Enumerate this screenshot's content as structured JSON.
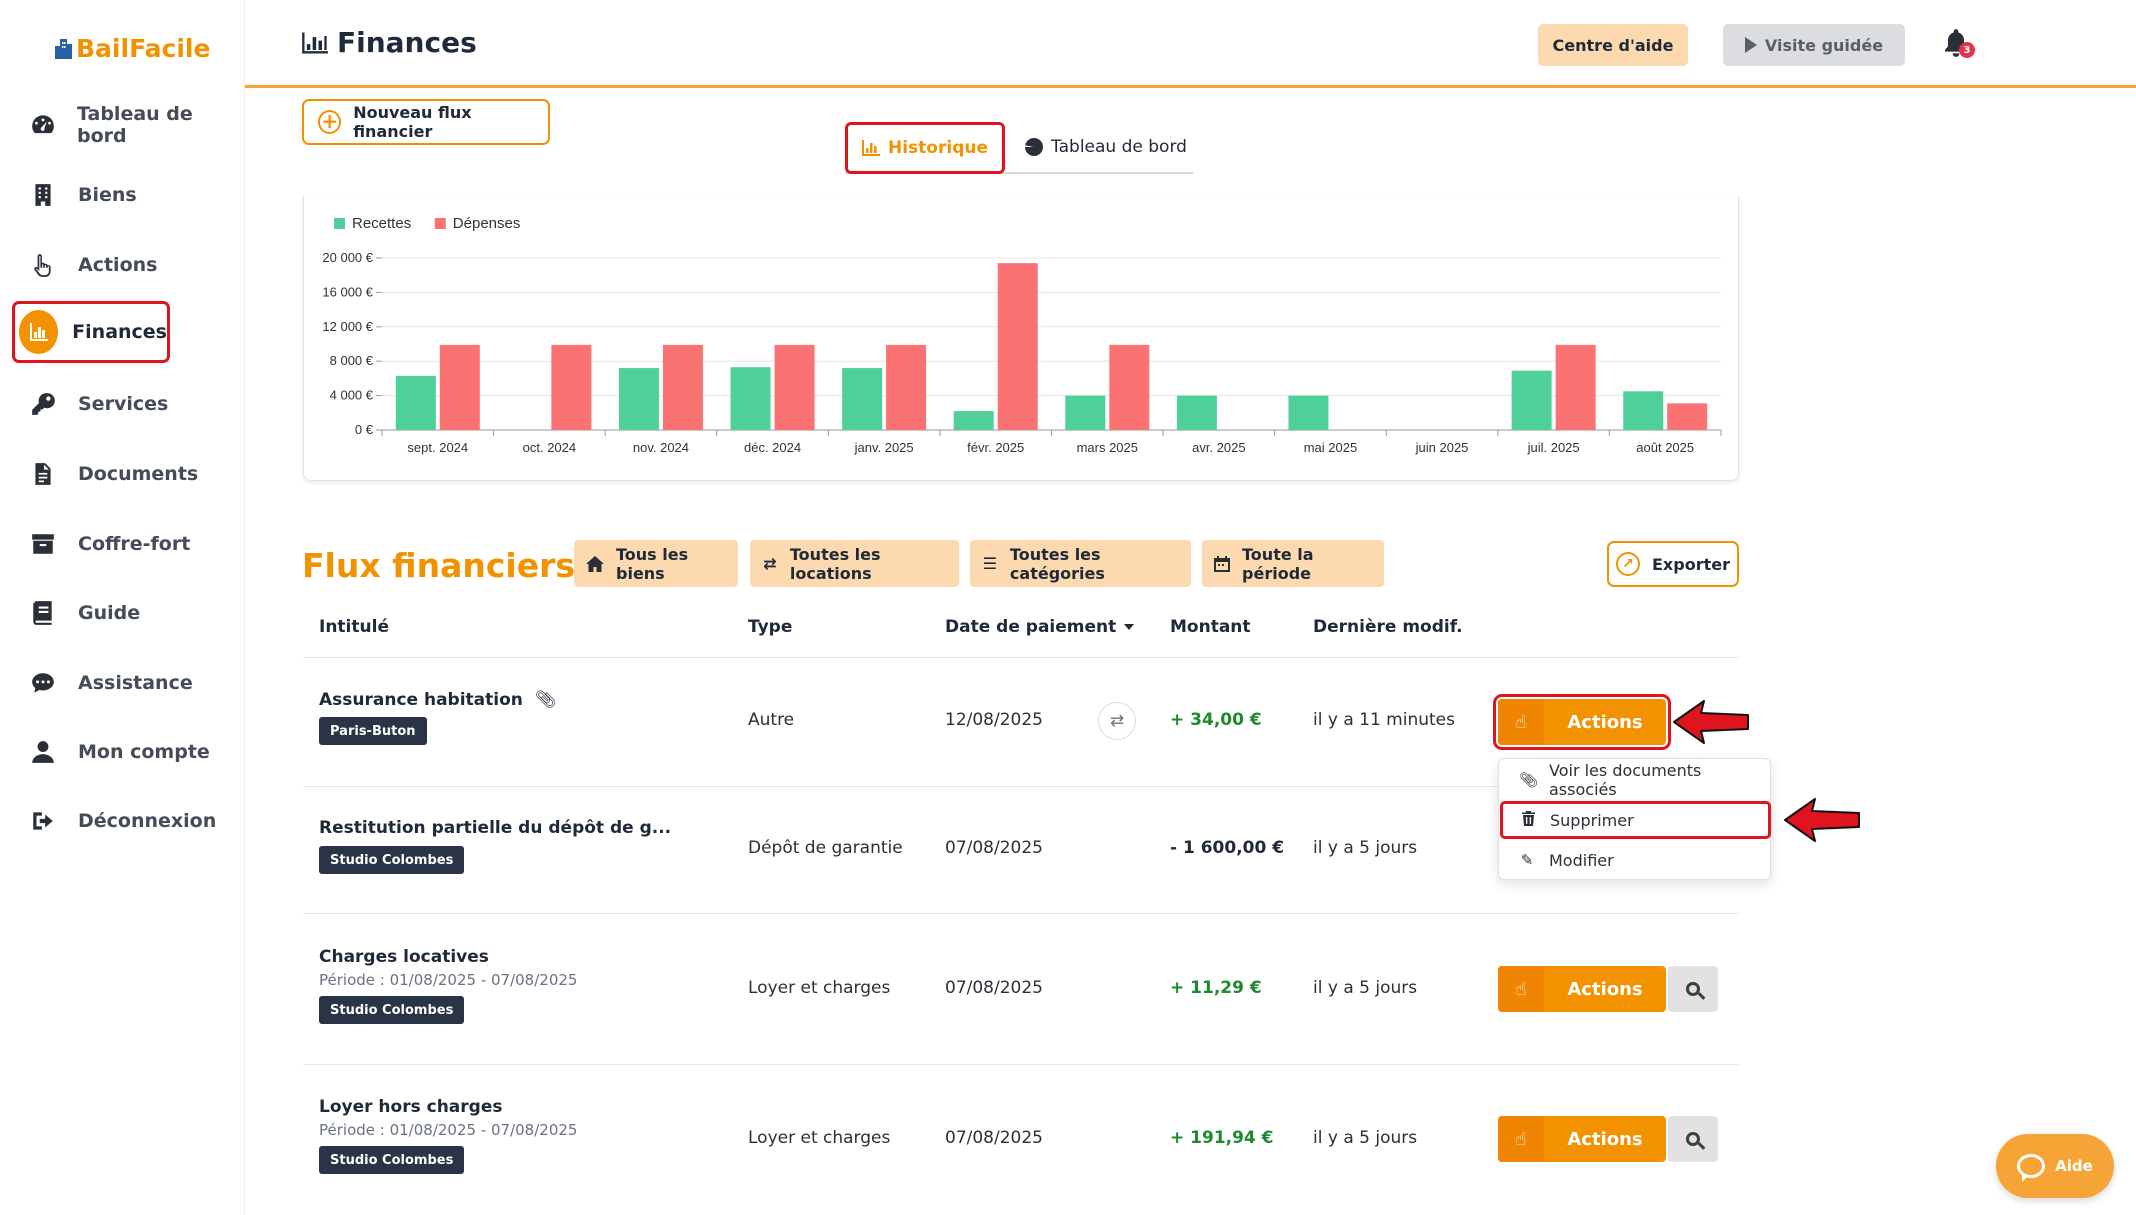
{
  "app": {
    "brand": "BailFacile"
  },
  "sidebar": {
    "items": [
      {
        "label": "Tableau de bord",
        "icon": "dashboard-gauge-icon"
      },
      {
        "label": "Biens",
        "icon": "building-icon"
      },
      {
        "label": "Actions",
        "icon": "hand-pointer-icon"
      },
      {
        "label": "Finances",
        "icon": "bar-chart-icon",
        "active": true
      },
      {
        "label": "Services",
        "icon": "key-icon"
      },
      {
        "label": "Documents",
        "icon": "document-icon"
      },
      {
        "label": "Coffre-fort",
        "icon": "archive-box-icon"
      },
      {
        "label": "Guide",
        "icon": "book-icon"
      },
      {
        "label": "Assistance",
        "icon": "chat-bubble-icon"
      },
      {
        "label": "Mon compte",
        "icon": "user-icon"
      },
      {
        "label": "Déconnexion",
        "icon": "logout-icon"
      }
    ]
  },
  "header": {
    "title": "Finances",
    "help_center": "Centre d'aide",
    "guided_tour": "Visite guidée",
    "notifications_count": "3"
  },
  "toolbar": {
    "new_flow": "Nouveau flux financier",
    "tabs": {
      "history": "Historique",
      "dashboard": "Tableau de bord"
    }
  },
  "chart_data": {
    "type": "bar",
    "categories": [
      "sept. 2024",
      "oct. 2024",
      "nov. 2024",
      "déc. 2024",
      "janv. 2025",
      "févr. 2025",
      "mars 2025",
      "avr. 2025",
      "mai 2025",
      "juin 2025",
      "juil. 2025",
      "août 2025"
    ],
    "series": [
      {
        "name": "Recettes",
        "color": "#4fd09a",
        "values": [
          6300,
          0,
          7200,
          7300,
          7200,
          2200,
          4000,
          4000,
          4000,
          0,
          6900,
          4500
        ]
      },
      {
        "name": "Dépenses",
        "color": "#fb7272",
        "values": [
          9900,
          9900,
          9900,
          9900,
          9900,
          19400,
          9900,
          0,
          0,
          0,
          9900,
          3100
        ]
      }
    ],
    "yticks": [
      "0 €",
      "4 000 €",
      "8 000 €",
      "12 000 €",
      "16 000 €",
      "20 000 €"
    ],
    "ylim": [
      0,
      20000
    ],
    "legend_position": "top-left",
    "grid": true
  },
  "flux": {
    "title": "Flux financiers",
    "filters": {
      "all_properties": "Tous les biens",
      "all_rentals": "Toutes les locations",
      "all_categories": "Toutes les catégories",
      "all_period": "Toute la période"
    },
    "export": "Exporter",
    "columns": {
      "label": "Intitulé",
      "type": "Type",
      "payment_date": "Date de paiement",
      "amount": "Montant",
      "last_modified": "Dernière modif."
    },
    "rows": [
      {
        "title": "Assurance habitation",
        "period": "",
        "tag": "Paris-Buton",
        "type": "Autre",
        "date": "12/08/2025",
        "amount": "+ 34,00 €",
        "modified": "il y a 11 minutes",
        "actions": "Actions"
      },
      {
        "title": "Restitution partielle du dépôt de g...",
        "period": "",
        "tag": "Studio Colombes",
        "type": "Dépôt de garantie",
        "date": "07/08/2025",
        "amount": "- 1 600,00 €",
        "modified": "il y a 5 jours",
        "actions": "Actions"
      },
      {
        "title": "Charges locatives",
        "period": "Période : 01/08/2025 - 07/08/2025",
        "tag": "Studio Colombes",
        "type": "Loyer et charges",
        "date": "07/08/2025",
        "amount": "+ 11,29 €",
        "modified": "il y a 5 jours",
        "actions": "Actions"
      },
      {
        "title": "Loyer hors charges",
        "period": "Période : 01/08/2025 - 07/08/2025",
        "tag": "Studio Colombes",
        "type": "Loyer et charges",
        "date": "07/08/2025",
        "amount": "+ 191,94 €",
        "modified": "il y a 5 jours",
        "actions": "Actions"
      }
    ],
    "dropdown": {
      "view_docs": "Voir les documents associés",
      "delete": "Supprimer",
      "edit": "Modifier"
    }
  },
  "help_widget": {
    "label": "Aide"
  },
  "colors": {
    "accent": "#f39200",
    "highlight": "#e0141f",
    "positive": "#1c8a2e",
    "tag_bg": "#2b3446"
  }
}
